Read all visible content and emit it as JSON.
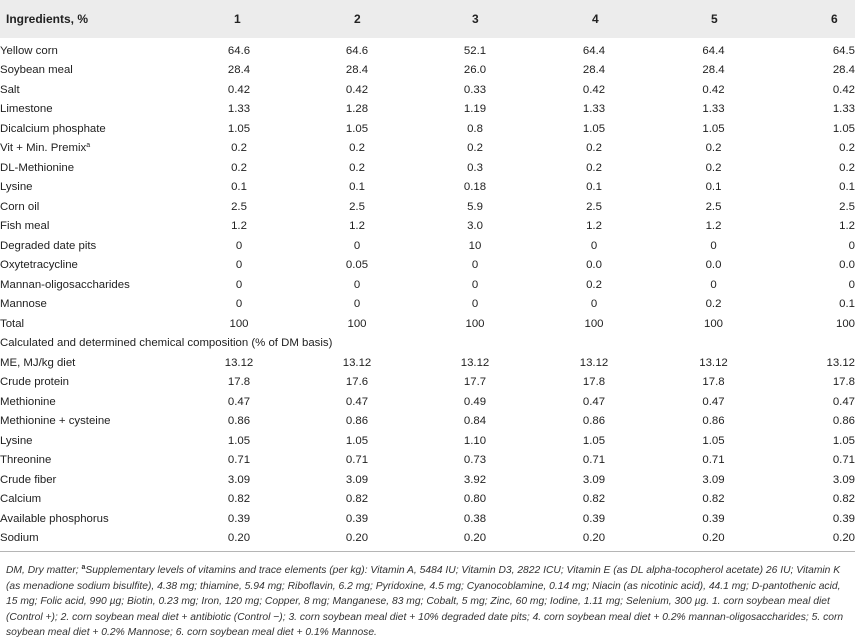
{
  "header": {
    "ingredients_label": "Ingredients, %",
    "columns": [
      "1",
      "2",
      "3",
      "4",
      "5",
      "6"
    ]
  },
  "rows_ingredients": [
    {
      "label": "Yellow corn",
      "sup": "",
      "values": [
        "64.6",
        "64.6",
        "52.1",
        "64.4",
        "64.4",
        "64.5"
      ]
    },
    {
      "label": "Soybean meal",
      "sup": "",
      "values": [
        "28.4",
        "28.4",
        "26.0",
        "28.4",
        "28.4",
        "28.4"
      ]
    },
    {
      "label": "Salt",
      "sup": "",
      "values": [
        "0.42",
        "0.42",
        "0.33",
        "0.42",
        "0.42",
        "0.42"
      ]
    },
    {
      "label": "Limestone",
      "sup": "",
      "values": [
        "1.33",
        "1.28",
        "1.19",
        "1.33",
        "1.33",
        "1.33"
      ]
    },
    {
      "label": "Dicalcium phosphate",
      "sup": "",
      "values": [
        "1.05",
        "1.05",
        "0.8",
        "1.05",
        "1.05",
        "1.05"
      ]
    },
    {
      "label": "Vit + Min. Premix",
      "sup": "a",
      "values": [
        "0.2",
        "0.2",
        "0.2",
        "0.2",
        "0.2",
        "0.2"
      ]
    },
    {
      "label": "DL-Methionine",
      "sup": "",
      "values": [
        "0.2",
        "0.2",
        "0.3",
        "0.2",
        "0.2",
        "0.2"
      ]
    },
    {
      "label": "Lysine",
      "sup": "",
      "values": [
        "0.1",
        "0.1",
        "0.18",
        "0.1",
        "0.1",
        "0.1"
      ]
    },
    {
      "label": "Corn oil",
      "sup": "",
      "values": [
        "2.5",
        "2.5",
        "5.9",
        "2.5",
        "2.5",
        "2.5"
      ]
    },
    {
      "label": "Fish meal",
      "sup": "",
      "values": [
        "1.2",
        "1.2",
        "3.0",
        "1.2",
        "1.2",
        "1.2"
      ]
    },
    {
      "label": "Degraded date pits",
      "sup": "",
      "values": [
        "0",
        "0",
        "10",
        "0",
        "0",
        "0"
      ]
    },
    {
      "label": "Oxytetracycline",
      "sup": "",
      "values": [
        "0",
        "0.05",
        "0",
        "0.0",
        "0.0",
        "0.0"
      ]
    },
    {
      "label": "Mannan-oligosaccharides",
      "sup": "",
      "values": [
        "0",
        "0",
        "0",
        "0.2",
        "0",
        "0"
      ]
    },
    {
      "label": "Mannose",
      "sup": "",
      "values": [
        "0",
        "0",
        "0",
        "0",
        "0.2",
        "0.1"
      ]
    },
    {
      "label": "Total",
      "sup": "",
      "values": [
        "100",
        "100",
        "100",
        "100",
        "100",
        "100"
      ]
    }
  ],
  "section_label": "Calculated and determined chemical composition (% of DM basis)",
  "rows_composition": [
    {
      "label": "ME, MJ/kg diet",
      "values": [
        "13.12",
        "13.12",
        "13.12",
        "13.12",
        "13.12",
        "13.12"
      ]
    },
    {
      "label": "Crude protein",
      "values": [
        "17.8",
        "17.6",
        "17.7",
        "17.8",
        "17.8",
        "17.8"
      ]
    },
    {
      "label": "Methionine",
      "values": [
        "0.47",
        "0.47",
        "0.49",
        "0.47",
        "0.47",
        "0.47"
      ]
    },
    {
      "label": "Methionine + cysteine",
      "values": [
        "0.86",
        "0.86",
        "0.84",
        "0.86",
        "0.86",
        "0.86"
      ]
    },
    {
      "label": "Lysine",
      "values": [
        "1.05",
        "1.05",
        "1.10",
        "1.05",
        "1.05",
        "1.05"
      ]
    },
    {
      "label": "Threonine",
      "values": [
        "0.71",
        "0.71",
        "0.73",
        "0.71",
        "0.71",
        "0.71"
      ]
    },
    {
      "label": "Crude fiber",
      "values": [
        "3.09",
        "3.09",
        "3.92",
        "3.09",
        "3.09",
        "3.09"
      ]
    },
    {
      "label": "Calcium",
      "values": [
        "0.82",
        "0.82",
        "0.80",
        "0.82",
        "0.82",
        "0.82"
      ]
    },
    {
      "label": "Available phosphorus",
      "values": [
        "0.39",
        "0.39",
        "0.38",
        "0.39",
        "0.39",
        "0.39"
      ]
    },
    {
      "label": "Sodium",
      "values": [
        "0.20",
        "0.20",
        "0.20",
        "0.20",
        "0.20",
        "0.20"
      ]
    }
  ],
  "footnote": {
    "lead": "DM, Dry matter; ",
    "marker": "a",
    "text": "Supplementary levels of vitamins and trace elements (per kg): Vitamin A, 5484 IU; Vitamin D3, 2822 ICU; Vitamin E (as DL alpha-tocopherol acetate) 26 IU; Vitamin K (as menadione sodium bisulfite), 4.38 mg; thiamine, 5.94 mg; Riboflavin, 6.2 mg; Pyridoxine, 4.5 mg; Cyanocoblamine, 0.14 mg; Niacin (as nicotinic acid), 44.1 mg; D-pantothenic acid, 15 mg; Folic acid, 990 µg; Biotin, 0.23 mg; Iron, 120 mg; Copper, 8 mg; Manganese, 83 mg; Cobalt, 5 mg; Zinc, 60 mg; Iodine, 1.11 mg; Selenium, 300 µg. 1. corn soybean meal diet (Control +); 2. corn soybean meal diet + antibiotic (Control −); 3. corn soybean meal diet + 10% degraded date pits; 4. corn soybean meal diet + 0.2% mannan-oligosaccharides; 5. corn soybean meal diet + 0.2% Mannose; 6. corn soybean meal diet + 0.1% Mannose."
  }
}
